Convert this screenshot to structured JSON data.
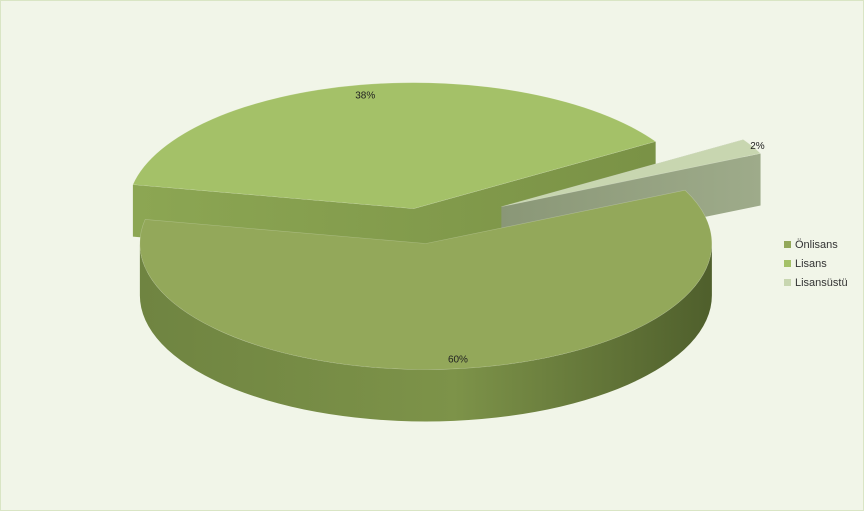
{
  "chart_data": {
    "type": "pie",
    "three_d": true,
    "exploded": true,
    "categories": [
      "Önlisans",
      "Lisans",
      "Lisansüstü"
    ],
    "values": [
      60,
      38,
      2
    ],
    "labels": [
      "60%",
      "38%",
      "2%"
    ],
    "colors": [
      "#93a85a",
      "#a4c168",
      "#c8d6b0"
    ],
    "legend_position": "right",
    "title": ""
  }
}
